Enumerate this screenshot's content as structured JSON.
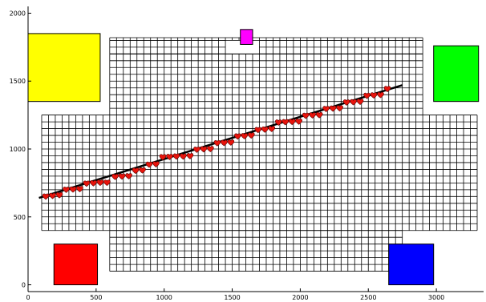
{
  "chart_data": {
    "type": "scatter",
    "xlim": [
      0,
      3300
    ],
    "ylim": [
      -50,
      2050
    ],
    "x_ticks": [
      {
        "value": 0,
        "label": "0"
      },
      {
        "value": 500,
        "label": "500"
      },
      {
        "value": 1000,
        "label": "1000"
      },
      {
        "value": 1500,
        "label": "1500"
      },
      {
        "value": 2000,
        "label": "2000"
      },
      {
        "value": 2500,
        "label": "2500"
      },
      {
        "value": 3000,
        "label": "3000"
      }
    ],
    "y_ticks": [
      {
        "value": 0,
        "label": "0"
      },
      {
        "value": 500,
        "label": "500"
      },
      {
        "value": 1000,
        "label": "1000"
      },
      {
        "value": 1500,
        "label": "1500"
      },
      {
        "value": 2000,
        "label": "2000"
      }
    ],
    "grid_regions": [
      {
        "x0": 600,
        "x1": 2900,
        "y0": 1800,
        "y1": 1820,
        "cell": 50
      },
      {
        "x0": 600,
        "x1": 1450,
        "y0": 1700,
        "y1": 1800,
        "cell": 50
      },
      {
        "x0": 1700,
        "x1": 2900,
        "y0": 1700,
        "y1": 1800,
        "cell": 50
      },
      {
        "x0": 600,
        "x1": 2900,
        "y0": 1250,
        "y1": 1700,
        "cell": 50
      },
      {
        "x0": 100,
        "x1": 3300,
        "y0": 400,
        "y1": 1250,
        "cell": 50
      },
      {
        "x0": 600,
        "x1": 2750,
        "y0": 100,
        "y1": 400,
        "cell": 50
      }
    ],
    "markers": [
      {
        "name": "yellow-square",
        "x0": 0,
        "x1": 530,
        "y0": 1350,
        "y1": 1850,
        "color": "#ffff00"
      },
      {
        "name": "green-square",
        "x0": 2980,
        "x1": 3310,
        "y0": 1350,
        "y1": 1760,
        "color": "#00ff00"
      },
      {
        "name": "magenta-square",
        "x0": 1560,
        "x1": 1650,
        "y0": 1770,
        "y1": 1880,
        "color": "#ff00ff"
      },
      {
        "name": "red-square",
        "x0": 190,
        "x1": 510,
        "y0": 0,
        "y1": 300,
        "color": "#ff0000"
      },
      {
        "name": "blue-square",
        "x0": 2650,
        "x1": 2980,
        "y0": 0,
        "y1": 300,
        "color": "#0000ff"
      }
    ],
    "line": {
      "x": [
        80,
        2750
      ],
      "y": [
        640,
        1470
      ],
      "color": "#000000"
    },
    "points_color": "#e8140c",
    "points": [
      [
        130,
        650
      ],
      [
        180,
        655
      ],
      [
        230,
        660
      ],
      [
        280,
        700
      ],
      [
        330,
        702
      ],
      [
        380,
        705
      ],
      [
        430,
        745
      ],
      [
        480,
        748
      ],
      [
        530,
        752
      ],
      [
        580,
        752
      ],
      [
        640,
        795
      ],
      [
        690,
        798
      ],
      [
        740,
        800
      ],
      [
        790,
        840
      ],
      [
        840,
        843
      ],
      [
        890,
        885
      ],
      [
        940,
        888
      ],
      [
        990,
        940
      ],
      [
        1040,
        942
      ],
      [
        1090,
        945
      ],
      [
        1140,
        945
      ],
      [
        1190,
        948
      ],
      [
        1240,
        995
      ],
      [
        1290,
        998
      ],
      [
        1340,
        1000
      ],
      [
        1390,
        1043
      ],
      [
        1440,
        1045
      ],
      [
        1490,
        1048
      ],
      [
        1540,
        1093
      ],
      [
        1590,
        1095
      ],
      [
        1640,
        1100
      ],
      [
        1690,
        1140
      ],
      [
        1740,
        1143
      ],
      [
        1790,
        1148
      ],
      [
        1840,
        1195
      ],
      [
        1890,
        1198
      ],
      [
        1940,
        1200
      ],
      [
        1990,
        1202
      ],
      [
        2040,
        1245
      ],
      [
        2090,
        1248
      ],
      [
        2140,
        1250
      ],
      [
        2190,
        1295
      ],
      [
        2240,
        1298
      ],
      [
        2290,
        1300
      ],
      [
        2340,
        1343
      ],
      [
        2390,
        1345
      ],
      [
        2440,
        1348
      ],
      [
        2490,
        1392
      ],
      [
        2540,
        1395
      ],
      [
        2590,
        1398
      ],
      [
        2640,
        1442
      ]
    ]
  }
}
